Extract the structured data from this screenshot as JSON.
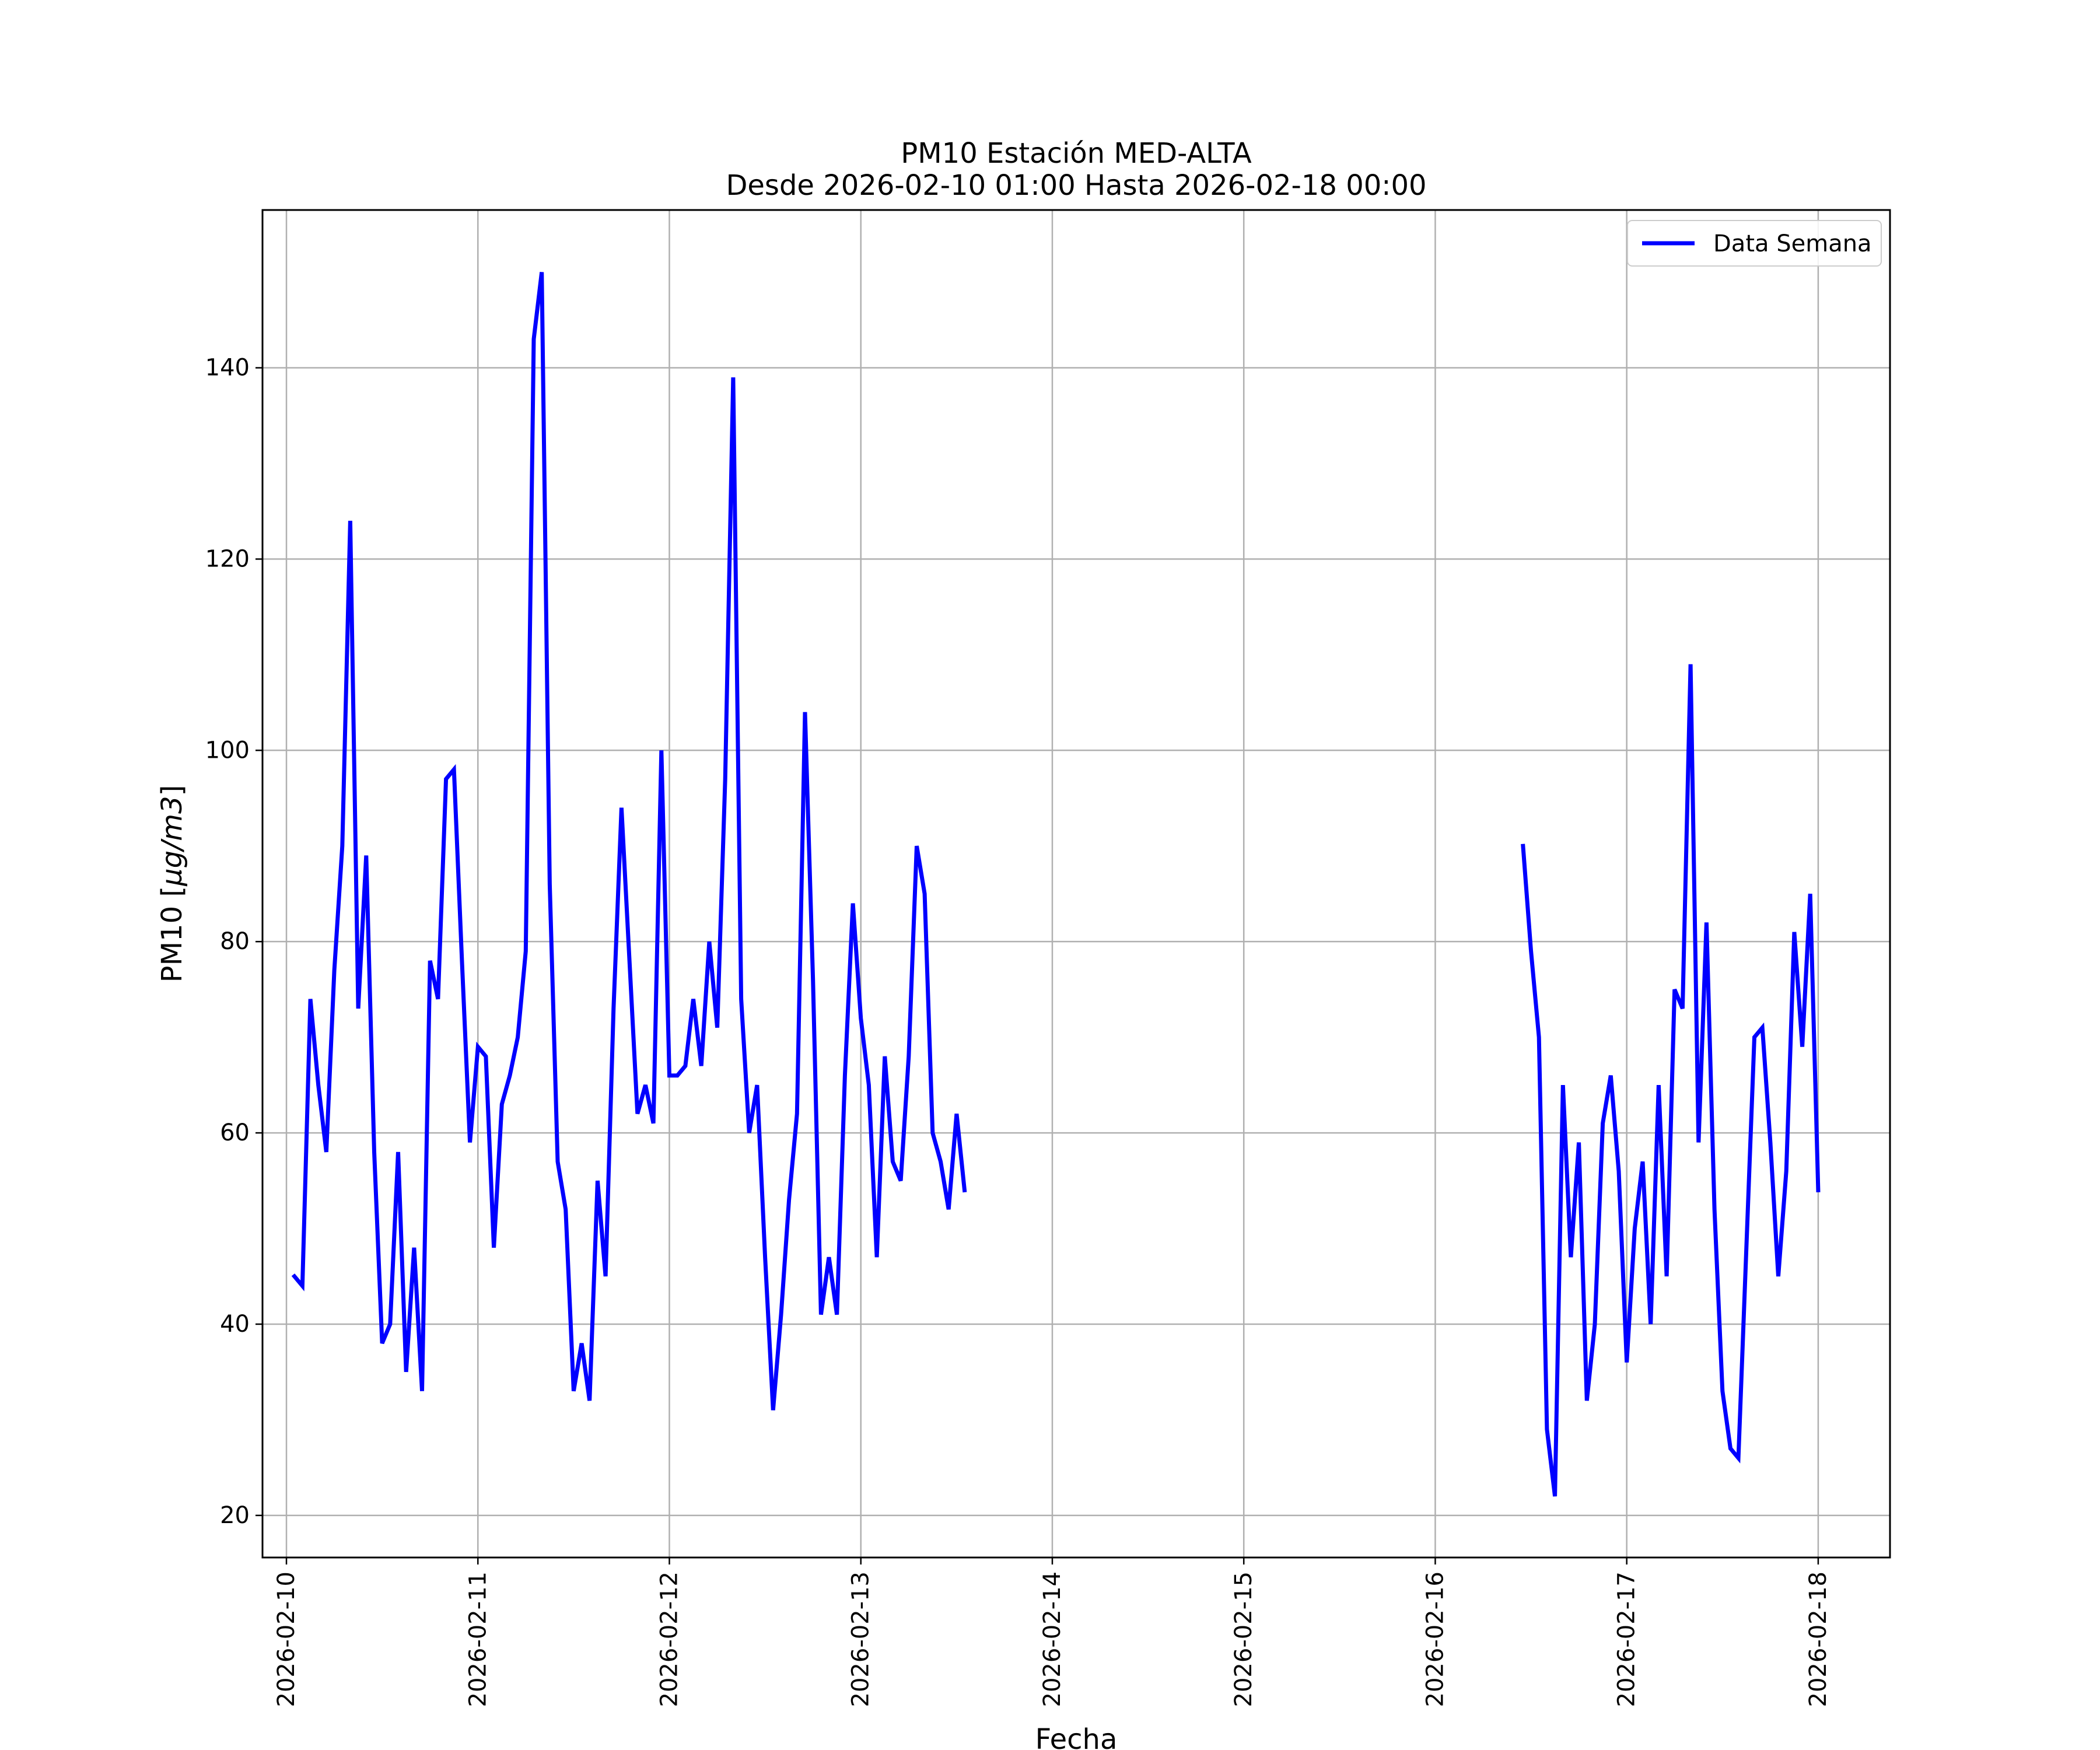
{
  "chart_data": {
    "type": "line",
    "title": "PM10 Estación MED-ALTA",
    "subtitle": "Desde 2026-02-10 01:00 Hasta 2026-02-18 00:00",
    "xlabel": "Fecha",
    "ylabel_prefix": "PM10 [",
    "ylabel_math": "μg/m3",
    "ylabel_suffix": "]",
    "xlim": [
      "2026-02-09 21:00",
      "2026-02-18 09:00"
    ],
    "ylim": [
      15.6,
      156.5
    ],
    "x_ticks": [
      "2026-02-10",
      "2026-02-11",
      "2026-02-12",
      "2026-02-13",
      "2026-02-14",
      "2026-02-15",
      "2026-02-16",
      "2026-02-17",
      "2026-02-18"
    ],
    "y_ticks": [
      20,
      40,
      60,
      80,
      100,
      120,
      140
    ],
    "grid": true,
    "legend_position": "top-right",
    "color": "#0000ff",
    "series": [
      {
        "name": "Data Semana",
        "segments": [
          {
            "start": "2026-02-10 01:00",
            "step_hours": 1,
            "values": [
              45,
              44,
              74,
              65,
              58,
              77,
              90,
              124,
              73,
              89,
              58,
              38,
              40,
              58,
              35,
              48,
              33,
              78,
              74,
              97,
              98,
              78,
              59,
              69,
              68,
              48,
              63,
              66,
              70,
              79,
              143,
              150,
              86,
              57,
              52,
              33,
              38,
              32,
              55,
              45,
              73,
              94,
              78,
              62,
              65,
              61,
              100,
              66,
              66,
              67,
              74,
              67,
              80,
              71,
              97,
              139,
              74,
              60,
              65,
              47,
              31,
              41,
              53,
              62,
              104,
              76,
              41,
              47,
              41,
              66,
              84,
              72,
              65,
              47,
              68,
              57,
              55,
              68,
              90,
              85,
              60,
              57,
              52,
              62,
              54
            ]
          },
          {
            "start": "2026-02-16 11:00",
            "step_hours": 1,
            "values": [
              90,
              79,
              70,
              29,
              22,
              65,
              47,
              59,
              32,
              40,
              61,
              66,
              56,
              36,
              50,
              57,
              40,
              65,
              45,
              75,
              73,
              109,
              59,
              82,
              52,
              33,
              27,
              26,
              48,
              70,
              71,
              59,
              45,
              56,
              81,
              69,
              85,
              54
            ]
          }
        ]
      }
    ]
  }
}
